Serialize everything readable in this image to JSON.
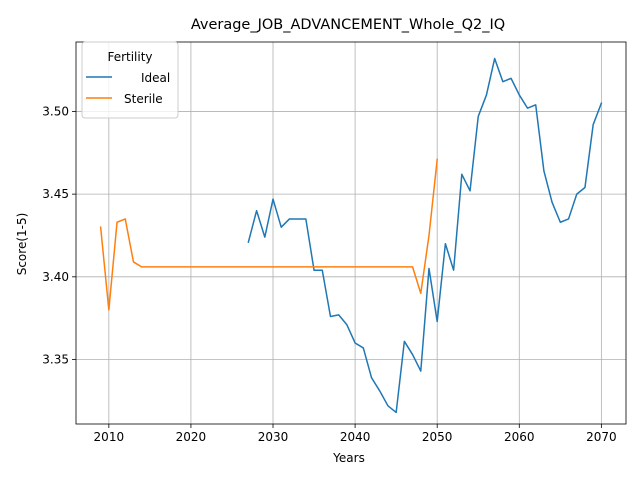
{
  "chart_data": {
    "type": "line",
    "title": "Average_JOB_ADVANCEMENT_Whole_Q2_IQ",
    "xlabel": "Years",
    "ylabel": "Score(1-5)",
    "xlim": [
      2006,
      2073
    ],
    "ylim": [
      3.311,
      3.542
    ],
    "xticks": [
      2010,
      2020,
      2030,
      2040,
      2050,
      2060,
      2070
    ],
    "yticks": [
      3.35,
      3.4,
      3.45,
      3.5
    ],
    "ytick_labels": [
      "3.35",
      "3.40",
      "3.45",
      "3.50"
    ],
    "grid": true,
    "legend": {
      "title": "Fertility",
      "placement": "top-left"
    },
    "series": [
      {
        "name": "Ideal",
        "color": "#1f77b4",
        "x": [
          2027,
          2028,
          2029,
          2030,
          2031,
          2032,
          2033,
          2034,
          2035,
          2036,
          2037,
          2038,
          2039,
          2040,
          2041,
          2042,
          2043,
          2044,
          2045,
          2046,
          2047,
          2048,
          2049,
          2050,
          2051,
          2052,
          2053,
          2054,
          2055,
          2056,
          2057,
          2058,
          2059,
          2060,
          2061,
          2062,
          2063,
          2064,
          2065,
          2066,
          2067,
          2068,
          2069,
          2070
        ],
        "y": [
          3.421,
          3.44,
          3.424,
          3.447,
          3.43,
          3.435,
          3.435,
          3.435,
          3.404,
          3.404,
          3.376,
          3.377,
          3.371,
          3.36,
          3.357,
          3.339,
          3.331,
          3.322,
          3.318,
          3.361,
          3.353,
          3.343,
          3.405,
          3.373,
          3.42,
          3.404,
          3.462,
          3.452,
          3.497,
          3.51,
          3.532,
          3.518,
          3.52,
          3.51,
          3.502,
          3.504,
          3.464,
          3.445,
          3.433,
          3.435,
          3.45,
          3.454,
          3.492,
          3.505
        ]
      },
      {
        "name": "Sterile",
        "color": "#ff7f0e",
        "x": [
          2009,
          2010,
          2011,
          2012,
          2013,
          2014,
          2015,
          2016,
          2017,
          2018,
          2019,
          2020,
          2021,
          2022,
          2023,
          2024,
          2025,
          2026,
          2027,
          2028,
          2029,
          2030,
          2031,
          2032,
          2033,
          2034,
          2035,
          2036,
          2037,
          2038,
          2039,
          2040,
          2041,
          2042,
          2043,
          2044,
          2045,
          2046,
          2047,
          2048,
          2049,
          2050
        ],
        "y": [
          3.43,
          3.38,
          3.433,
          3.435,
          3.409,
          3.406,
          3.406,
          3.406,
          3.406,
          3.406,
          3.406,
          3.406,
          3.406,
          3.406,
          3.406,
          3.406,
          3.406,
          3.406,
          3.406,
          3.406,
          3.406,
          3.406,
          3.406,
          3.406,
          3.406,
          3.406,
          3.406,
          3.406,
          3.406,
          3.406,
          3.406,
          3.406,
          3.406,
          3.406,
          3.406,
          3.406,
          3.406,
          3.406,
          3.406,
          3.39,
          3.425,
          3.471
        ]
      }
    ]
  }
}
